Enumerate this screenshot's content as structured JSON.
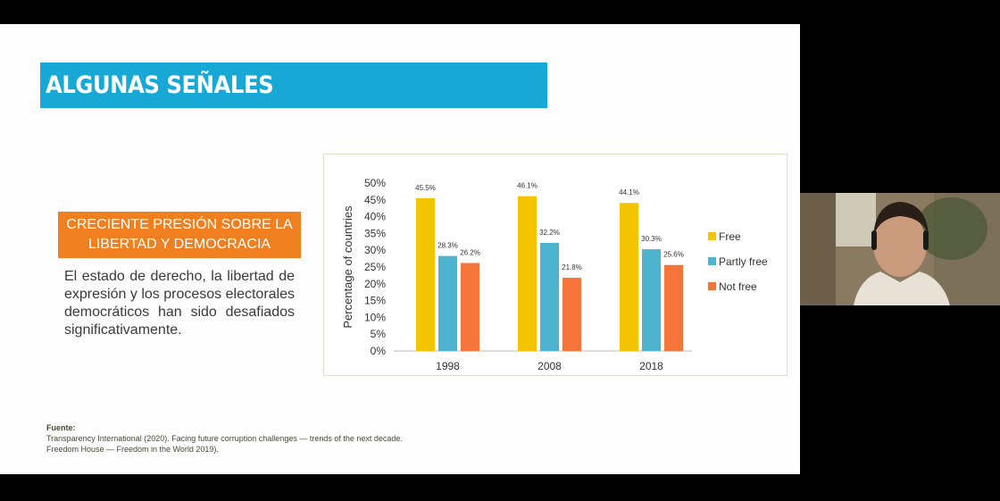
{
  "slide": {
    "title": "ALGUNAS SEÑALES",
    "highlight_line1": "CRECIENTE PRESIÓN SOBRE LA",
    "highlight_line2": "LIBERTAD Y DEMOCRACIA",
    "body": "El estado de derecho, la libertad de expresión y los procesos electorales democráticos han sido desafiados significativamente.",
    "source_label": "Fuente:",
    "source_line1": "Transparency International (2020). Facing future corruption challenges — trends of the next decade.",
    "source_line2": "Freedom House — Freedom in the World 2019)."
  },
  "colors": {
    "title_bar": "#17a8d6",
    "highlight": "#f0801f",
    "free": "#f2c500",
    "partly_free": "#4eb3cf",
    "not_free": "#f4743a"
  },
  "chart_data": {
    "type": "bar",
    "categories": [
      "1998",
      "2008",
      "2018"
    ],
    "series": [
      {
        "name": "Free",
        "values": [
          45.5,
          46.1,
          44.1
        ],
        "labels": [
          "45.5%",
          "46.1%",
          "44.1%"
        ]
      },
      {
        "name": "Partly free",
        "values": [
          28.3,
          32.2,
          30.3
        ],
        "labels": [
          "28.3%",
          "32.2%",
          "30.3%"
        ]
      },
      {
        "name": "Not free",
        "values": [
          26.2,
          21.8,
          25.6
        ],
        "labels": [
          "26.2%",
          "21.8%",
          "25.6%"
        ]
      }
    ],
    "ylabel": "Percentage of countries",
    "ylim": [
      0,
      50
    ],
    "yticks": [
      "0%",
      "5%",
      "10%",
      "15%",
      "20%",
      "25%",
      "30%",
      "35%",
      "40%",
      "45%",
      "50%"
    ],
    "legend_position": "right",
    "grid": false
  }
}
